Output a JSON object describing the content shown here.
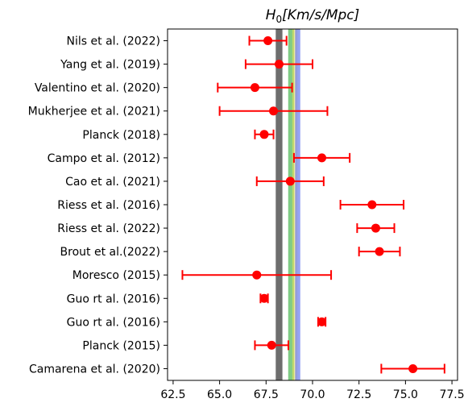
{
  "chart_data": {
    "type": "scatter",
    "title": "H0[Km/s/Mpc]",
    "title_parts": {
      "base": "H",
      "subscript": "0",
      "rest": "[Km/s/Mpc]"
    },
    "xlim": [
      62.2,
      77.8
    ],
    "xticks": [
      62.5,
      65.0,
      67.5,
      70.0,
      72.5,
      75.0,
      77.5
    ],
    "xtick_labels": [
      "62.5",
      "65.0",
      "67.5",
      "70.0",
      "72.5",
      "75.0",
      "77.5"
    ],
    "grid": false,
    "marker_color": "#ff0000",
    "categories": [
      "Nils et al. (2022)",
      "Yang et al. (2019)",
      "Valentino et al. (2020)",
      "Mukherjee et al. (2021)",
      "Planck (2018)",
      "Campo et al. (2012)",
      "Cao et al. (2021)",
      "Riess et al. (2016)",
      "Riess et al. (2022)",
      "Brout et al.(2022)",
      "Moresco (2015)",
      "Guo rt al. (2016)",
      "Guo rt al. (2016)",
      "Planck (2015)",
      "Camarena et al. (2020)"
    ],
    "points": [
      {
        "value": 67.6,
        "low": 66.6,
        "high": 68.6
      },
      {
        "value": 68.2,
        "low": 66.4,
        "high": 70.0
      },
      {
        "value": 66.9,
        "low": 64.9,
        "high": 68.9
      },
      {
        "value": 67.9,
        "low": 65.0,
        "high": 70.8
      },
      {
        "value": 67.4,
        "low": 66.9,
        "high": 67.9
      },
      {
        "value": 70.5,
        "low": 69.0,
        "high": 72.0
      },
      {
        "value": 68.8,
        "low": 67.0,
        "high": 70.6
      },
      {
        "value": 73.2,
        "low": 71.5,
        "high": 74.9
      },
      {
        "value": 73.4,
        "low": 72.4,
        "high": 74.4
      },
      {
        "value": 73.6,
        "low": 72.5,
        "high": 74.7
      },
      {
        "value": 67.0,
        "low": 63.0,
        "high": 71.0
      },
      {
        "value": 67.4,
        "low": 67.2,
        "high": 67.6
      },
      {
        "value": 70.5,
        "low": 70.3,
        "high": 70.7
      },
      {
        "value": 67.8,
        "low": 66.9,
        "high": 68.7
      },
      {
        "value": 75.4,
        "low": 73.7,
        "high": 77.1
      }
    ],
    "bands": [
      {
        "center": 68.2,
        "halfwidth": 0.18,
        "color": "#555555",
        "opacity": 0.85
      },
      {
        "center": 68.85,
        "halfwidth": 0.16,
        "color": "#3cb043",
        "opacity": 0.65
      },
      {
        "center": 69.05,
        "halfwidth": 0.14,
        "color": "#f0e05a",
        "opacity": 0.55
      },
      {
        "center": 69.2,
        "halfwidth": 0.14,
        "color": "#6a7cf0",
        "opacity": 0.7
      }
    ]
  }
}
